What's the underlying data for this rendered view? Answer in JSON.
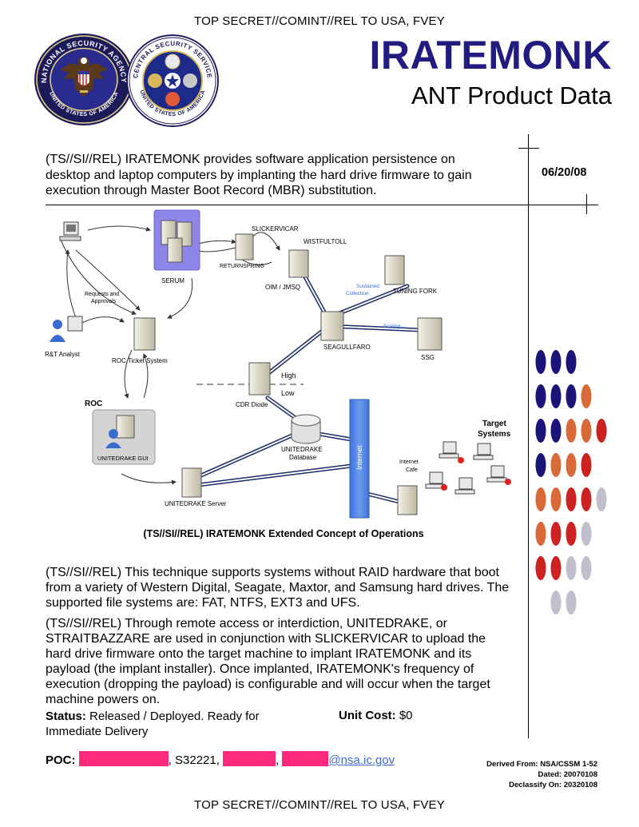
{
  "classification": {
    "top": "TOP SECRET//COMINT//REL TO USA, FVEY",
    "bottom": "TOP SECRET//COMINT//REL TO USA, FVEY"
  },
  "seals": {
    "nsa": {
      "text_top": "NATIONAL SECURITY AGENCY",
      "text_bottom": "UNITED STATES OF AMERICA"
    },
    "css": {
      "text_top": "CENTRAL SECURITY SERVICE",
      "text_bottom": "UNITED STATES OF AMERICA"
    }
  },
  "header": {
    "title": "IRATEMONK",
    "subtitle": "ANT Product Data"
  },
  "intro": "(TS//SI//REL) IRATEMONK provides software application persistence on desktop and laptop computers by implanting the hard drive firmware to gain execution through Master Boot Record (MBR) substitution.",
  "date": "06/20/08",
  "diagram": {
    "caption": "(TS//SI//REL) IRATEMONK Extended Concept of Operations",
    "labels": {
      "slickervicar": "SLICKERVICAR",
      "wistfultoll": "WISTFULTOLL",
      "returnspring": "RETURNSPRING",
      "serum": "SERUM",
      "oim": "OIM / JMSQ",
      "sustained1": "Sustained",
      "sustained2": "Collection",
      "tuning_fork": "TUNING FORK",
      "requests1": "Requests and",
      "requests2": "Approvals",
      "rt_analyst": "R&T Analyst",
      "roc_ticket": "ROC Ticket System",
      "scaling": "Scaling",
      "seagullfaro": "SEAGULLFARO",
      "ssg": "SSG",
      "high": "High",
      "low": "Low",
      "roc": "ROC",
      "cdr_diode": "CDR Diode",
      "target1": "Target",
      "target2": "Systems",
      "unitedrake_gui": "UNITEDRAKE GUI",
      "unitedrake_db1": "UNITEDRAKE",
      "unitedrake_db2": "Database",
      "internet": "Internet",
      "cafe1": "Internet",
      "cafe2": "Cafe",
      "unitedrake_server": "UNITEDRAKE Server"
    }
  },
  "paragraphs": [
    "(TS//SI//REL) This technique supports systems without RAID hardware that boot from a variety of Western Digital, Seagate, Maxtor, and Samsung hard drives. The supported file systems are: FAT, NTFS, EXT3 and UFS.",
    "(TS//SI//REL) Through remote access or interdiction, UNITEDRAKE, or STRAITBAZZARE are used in conjunction with SLICKERVICAR to upload the hard drive firmware onto the target machine to implant IRATEMONK and its payload (the implant installer). Once implanted, IRATEMONK's frequency of execution (dropping the payload) is configurable and will occur when the target machine powers on."
  ],
  "status": {
    "label": "Status:",
    "value": "Released / Deployed. Ready for Immediate Delivery"
  },
  "cost": {
    "label": "Unit Cost:",
    "value": "$0"
  },
  "poc": {
    "label": "POC:",
    "code": ", S32221,",
    "sep": ",",
    "email_domain": "@nsa.ic.gov"
  },
  "derived": {
    "line1": "Derived From: NSA/CSSM 1-52",
    "line2": "Dated: 20070108",
    "line3": "Declassify On: 20320108"
  },
  "colors": {
    "title": "#221b80",
    "redaction": "#ff2a7b",
    "link": "#3a6bd0",
    "dot_navy": "#1a1478",
    "dot_orange": "#d86a3a",
    "dot_red": "#cc2222",
    "dot_gray": "#c0c0cc"
  },
  "dot_rows": [
    [
      "navy",
      "navy",
      "navy"
    ],
    [
      "navy",
      "navy",
      "navy",
      "orange"
    ],
    [
      "navy",
      "navy",
      "orange",
      "orange",
      "red"
    ],
    [
      "navy",
      "orange",
      "orange",
      "red"
    ],
    [
      "orange",
      "orange",
      "red",
      "red",
      "gray"
    ],
    [
      "orange",
      "red",
      "red",
      "gray"
    ],
    [
      "red",
      "red",
      "gray",
      "gray"
    ],
    [
      "gray",
      "gray"
    ]
  ]
}
